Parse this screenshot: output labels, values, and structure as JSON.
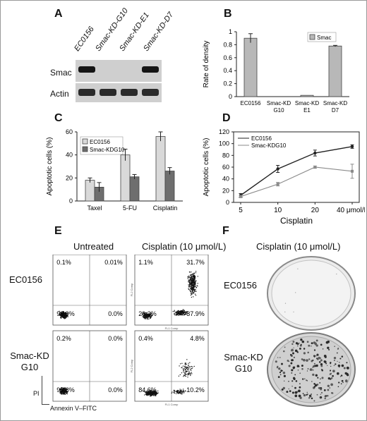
{
  "panels": {
    "A": {
      "label": "A",
      "lanes": [
        "EC0156",
        "Smac-KD-G10",
        "Smac-KD-E1",
        "Smac-KD-D7"
      ],
      "rows": [
        "Smac",
        "Actin"
      ],
      "bands": {
        "Smac": [
          1,
          0,
          0,
          1
        ],
        "Actin": [
          1,
          1,
          1,
          1
        ]
      }
    },
    "B": {
      "label": "B"
    },
    "C": {
      "label": "C"
    },
    "D": {
      "label": "D"
    },
    "E": {
      "label": "E",
      "col_titles": [
        "Untreated",
        "Cisplatin (10 μmol/L)"
      ],
      "row_titles": [
        "EC0156",
        "Smac-KD\nG10"
      ],
      "quadrants": [
        [
          "0.1%",
          "0.01%",
          "99.9%",
          "0.0%"
        ],
        [
          "1.1%",
          "31.7%",
          "29.3%",
          "37.9%"
        ],
        [
          "0.2%",
          "0.0%",
          "99.8%",
          "0.0%"
        ],
        [
          "0.4%",
          "4.8%",
          "84.6%",
          "10.2%"
        ]
      ],
      "x_axis_label": "Annexin V–FITC",
      "y_axis_label": "PI",
      "tiny_x": "FL1 Comp",
      "tiny_y": "FL2 Comp"
    },
    "F": {
      "label": "F",
      "title": "Cisplatin (10 μmol/L)",
      "plates": [
        "EC0156",
        "Smac-KD\nG10"
      ]
    }
  },
  "chart_data": [
    {
      "panel": "B",
      "type": "bar",
      "categories": [
        "EC0156",
        "Smac-KD G10",
        "Smac-KD E1",
        "Smac-KD D7"
      ],
      "series": [
        {
          "name": "Smac",
          "values": [
            0.9,
            0.0,
            0.02,
            0.78
          ],
          "errors": [
            0.07,
            0.0,
            0.0,
            0.01
          ]
        }
      ],
      "ylabel": "Rate of density",
      "ylim": [
        0,
        1
      ],
      "yticks": [
        0,
        0.2,
        0.4,
        0.6,
        0.8,
        1
      ],
      "legend": "top-right",
      "colors": [
        "#b8b8b8"
      ]
    },
    {
      "panel": "C",
      "type": "bar",
      "categories": [
        "Taxel",
        "5-FU",
        "Cisplatin"
      ],
      "series": [
        {
          "name": "EC0156",
          "values": [
            18,
            40,
            56
          ],
          "errors": [
            2,
            5,
            4
          ]
        },
        {
          "name": "Smac-KDG10",
          "values": [
            12,
            21,
            26
          ],
          "errors": [
            4,
            2,
            3
          ]
        }
      ],
      "ylabel": "Apoptotic cells (%)",
      "ylim": [
        0,
        60
      ],
      "yticks": [
        0,
        20,
        40,
        60
      ],
      "legend": "top-left",
      "colors": [
        "#d9d9d9",
        "#6e6e6e"
      ]
    },
    {
      "panel": "D",
      "type": "line",
      "x": [
        "5",
        "10",
        "20",
        "40 μmol/L"
      ],
      "series": [
        {
          "name": "EC0156",
          "values": [
            12,
            57,
            84,
            95
          ],
          "errors": [
            3,
            6,
            5,
            3
          ]
        },
        {
          "name": "Smac-KDG10",
          "values": [
            10,
            31,
            60,
            53
          ],
          "errors": [
            2,
            3,
            2,
            12
          ]
        }
      ],
      "xlabel": "Cisplatin",
      "ylabel": "Apoptotic cells (%)",
      "ylim": [
        0,
        120
      ],
      "yticks": [
        0,
        20,
        40,
        60,
        80,
        100,
        120
      ],
      "legend": "top-left",
      "colors": [
        "#222222",
        "#8a8a8a"
      ]
    }
  ]
}
